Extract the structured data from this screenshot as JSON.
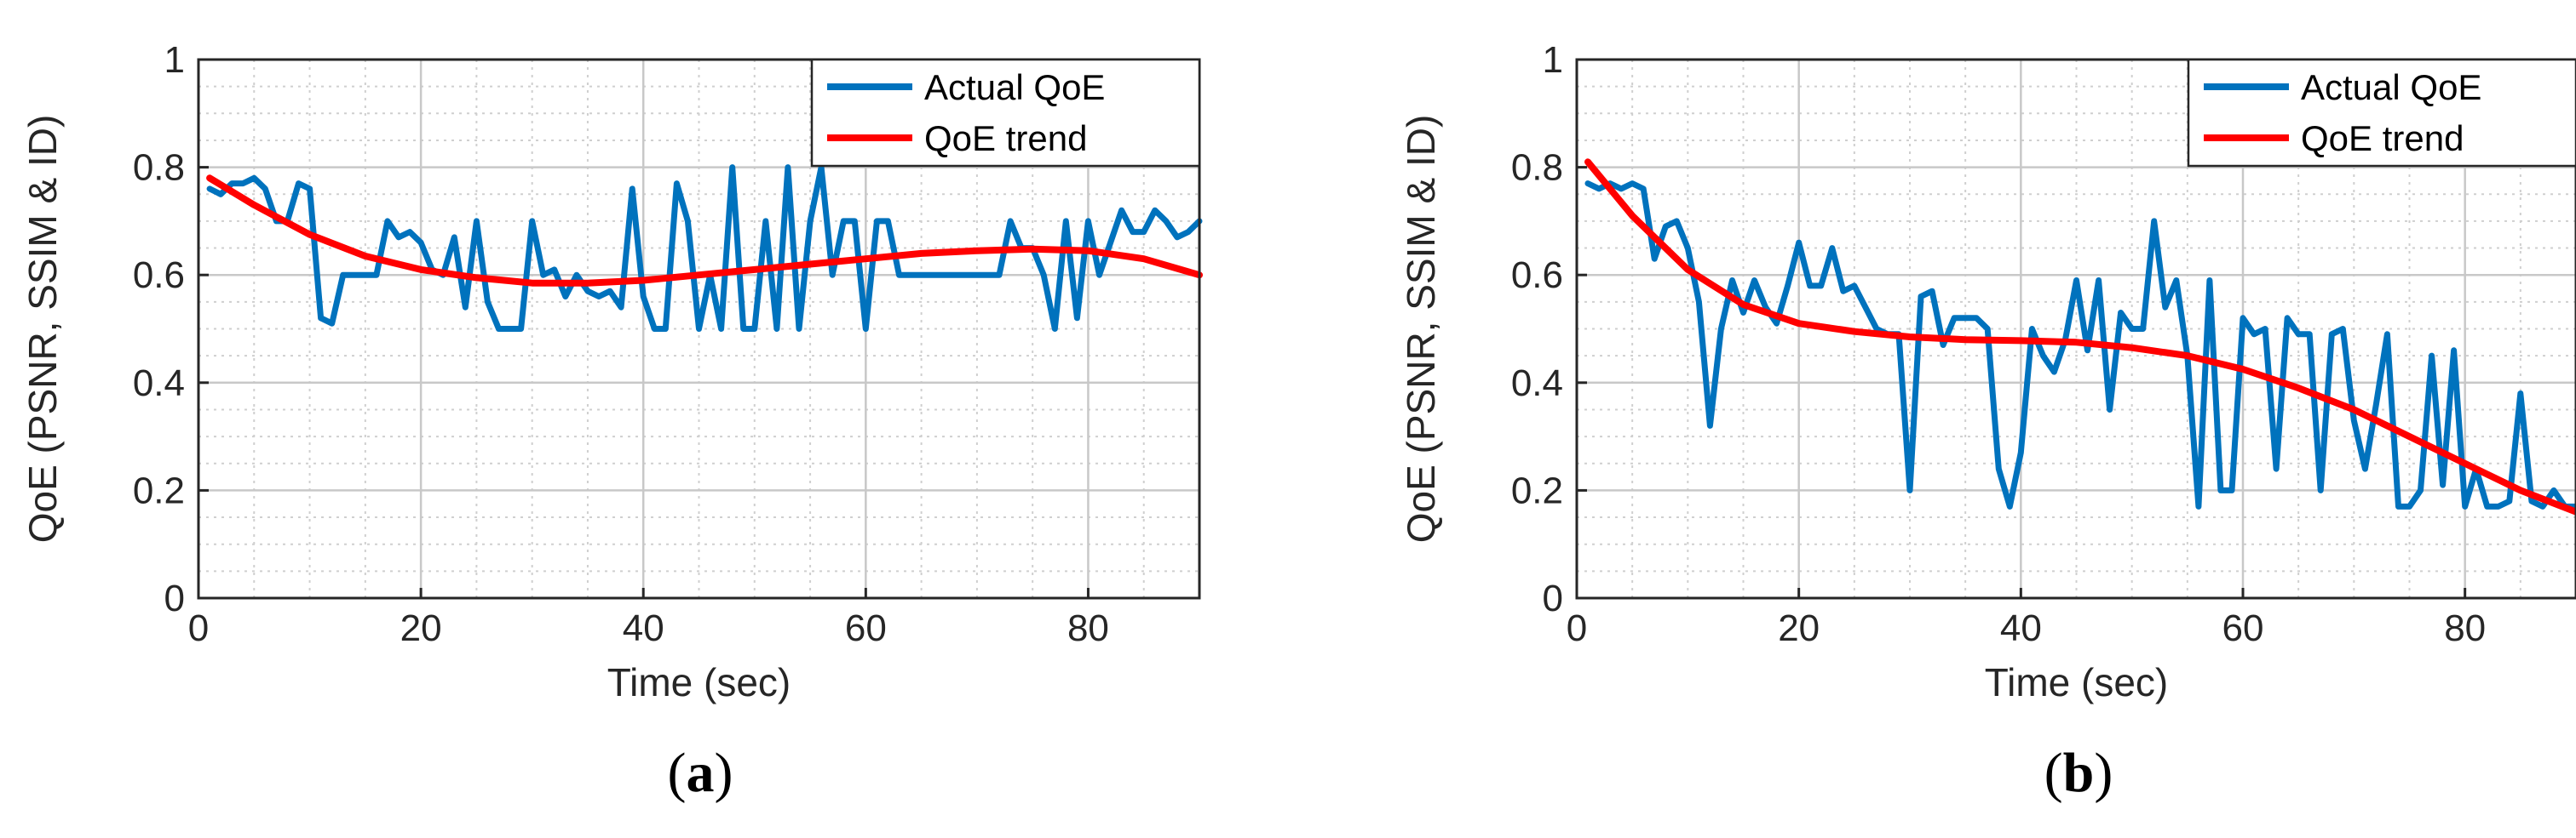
{
  "chart_data": [
    {
      "type": "line",
      "caption_open": "(",
      "caption_letter": "a",
      "caption_close": ")",
      "xlabel": "Time (sec)",
      "ylabel": "QoE (PSNR, SSIM & ID)",
      "xlim": [
        0,
        90
      ],
      "ylim": [
        0,
        1
      ],
      "xticks": [
        "0",
        "20",
        "40",
        "60",
        "80"
      ],
      "yticks": [
        "0",
        "0.2",
        "0.4",
        "0.6",
        "0.8",
        "1"
      ],
      "legend_position": "top-right",
      "series": [
        {
          "name": "Actual QoE",
          "color": "#0072BD",
          "x": [
            1,
            2,
            3,
            4,
            5,
            6,
            7,
            8,
            9,
            10,
            11,
            12,
            13,
            14,
            15,
            16,
            17,
            18,
            19,
            20,
            21,
            22,
            23,
            24,
            25,
            26,
            27,
            28,
            29,
            30,
            31,
            32,
            33,
            34,
            35,
            36,
            37,
            38,
            39,
            40,
            41,
            42,
            43,
            44,
            45,
            46,
            47,
            48,
            49,
            50,
            51,
            52,
            53,
            54,
            55,
            56,
            57,
            58,
            59,
            60,
            61,
            62,
            63,
            64,
            65,
            66,
            67,
            68,
            69,
            70,
            71,
            72,
            73,
            74,
            75,
            76,
            77,
            78,
            79,
            80,
            81,
            82,
            83,
            84,
            85,
            86,
            87,
            88,
            89,
            90
          ],
          "y": [
            0.76,
            0.75,
            0.77,
            0.77,
            0.78,
            0.76,
            0.7,
            0.7,
            0.77,
            0.76,
            0.52,
            0.51,
            0.6,
            0.6,
            0.6,
            0.6,
            0.7,
            0.67,
            0.68,
            0.66,
            0.61,
            0.6,
            0.67,
            0.54,
            0.7,
            0.55,
            0.5,
            0.5,
            0.5,
            0.7,
            0.6,
            0.61,
            0.56,
            0.6,
            0.57,
            0.56,
            0.57,
            0.54,
            0.76,
            0.56,
            0.5,
            0.5,
            0.77,
            0.7,
            0.5,
            0.6,
            0.5,
            0.8,
            0.5,
            0.5,
            0.7,
            0.5,
            0.8,
            0.5,
            0.7,
            0.8,
            0.6,
            0.7,
            0.7,
            0.5,
            0.7,
            0.7,
            0.6,
            0.6,
            0.6,
            0.6,
            0.6,
            0.6,
            0.6,
            0.6,
            0.6,
            0.6,
            0.7,
            0.65,
            0.65,
            0.6,
            0.5,
            0.7,
            0.52,
            0.7,
            0.6,
            0.66,
            0.72,
            0.68,
            0.68,
            0.72,
            0.7,
            0.67,
            0.68,
            0.7
          ]
        },
        {
          "name": "QoE trend",
          "color": "#FF0000",
          "x": [
            1,
            5,
            10,
            15,
            20,
            25,
            30,
            35,
            40,
            45,
            50,
            55,
            60,
            65,
            70,
            75,
            80,
            85,
            90
          ],
          "y": [
            0.78,
            0.73,
            0.675,
            0.635,
            0.61,
            0.595,
            0.585,
            0.585,
            0.59,
            0.6,
            0.61,
            0.62,
            0.63,
            0.64,
            0.645,
            0.648,
            0.645,
            0.63,
            0.6
          ]
        }
      ]
    },
    {
      "type": "line",
      "caption_open": "(",
      "caption_letter": "b",
      "caption_close": ")",
      "xlabel": "Time (sec)",
      "ylabel": "QoE (PSNR, SSIM & ID)",
      "xlim": [
        0,
        90
      ],
      "ylim": [
        0,
        1
      ],
      "xticks": [
        "0",
        "20",
        "40",
        "60",
        "80"
      ],
      "yticks": [
        "0",
        "0.2",
        "0.4",
        "0.6",
        "0.8",
        "1"
      ],
      "legend_position": "top-right",
      "series": [
        {
          "name": "Actual QoE",
          "color": "#0072BD",
          "x": [
            1,
            2,
            3,
            4,
            5,
            6,
            7,
            8,
            9,
            10,
            11,
            12,
            13,
            14,
            15,
            16,
            17,
            18,
            19,
            20,
            21,
            22,
            23,
            24,
            25,
            26,
            27,
            28,
            29,
            30,
            31,
            32,
            33,
            34,
            35,
            36,
            37,
            38,
            39,
            40,
            41,
            42,
            43,
            44,
            45,
            46,
            47,
            48,
            49,
            50,
            51,
            52,
            53,
            54,
            55,
            56,
            57,
            58,
            59,
            60,
            61,
            62,
            63,
            64,
            65,
            66,
            67,
            68,
            69,
            70,
            71,
            72,
            73,
            74,
            75,
            76,
            77,
            78,
            79,
            80,
            81,
            82,
            83,
            84,
            85,
            86,
            87,
            88,
            89,
            90
          ],
          "y": [
            0.77,
            0.76,
            0.77,
            0.76,
            0.77,
            0.76,
            0.63,
            0.69,
            0.7,
            0.65,
            0.55,
            0.32,
            0.5,
            0.59,
            0.53,
            0.59,
            0.54,
            0.51,
            0.58,
            0.66,
            0.58,
            0.58,
            0.65,
            0.57,
            0.58,
            0.54,
            0.5,
            0.49,
            0.49,
            0.2,
            0.56,
            0.57,
            0.47,
            0.52,
            0.52,
            0.52,
            0.5,
            0.24,
            0.17,
            0.27,
            0.5,
            0.45,
            0.42,
            0.48,
            0.59,
            0.46,
            0.59,
            0.35,
            0.53,
            0.5,
            0.5,
            0.7,
            0.54,
            0.59,
            0.45,
            0.17,
            0.59,
            0.2,
            0.2,
            0.52,
            0.49,
            0.5,
            0.24,
            0.52,
            0.49,
            0.49,
            0.2,
            0.49,
            0.5,
            0.33,
            0.24,
            0.36,
            0.49,
            0.17,
            0.17,
            0.2,
            0.45,
            0.21,
            0.46,
            0.17,
            0.24,
            0.17,
            0.17,
            0.18,
            0.38,
            0.18,
            0.17,
            0.2,
            0.17,
            0.17
          ]
        },
        {
          "name": "QoE trend",
          "color": "#FF0000",
          "x": [
            1,
            5,
            10,
            15,
            20,
            25,
            30,
            35,
            40,
            45,
            50,
            55,
            60,
            65,
            70,
            75,
            80,
            85,
            90
          ],
          "y": [
            0.81,
            0.71,
            0.61,
            0.545,
            0.51,
            0.495,
            0.485,
            0.48,
            0.478,
            0.475,
            0.465,
            0.45,
            0.425,
            0.39,
            0.35,
            0.3,
            0.25,
            0.2,
            0.16
          ]
        }
      ]
    }
  ]
}
